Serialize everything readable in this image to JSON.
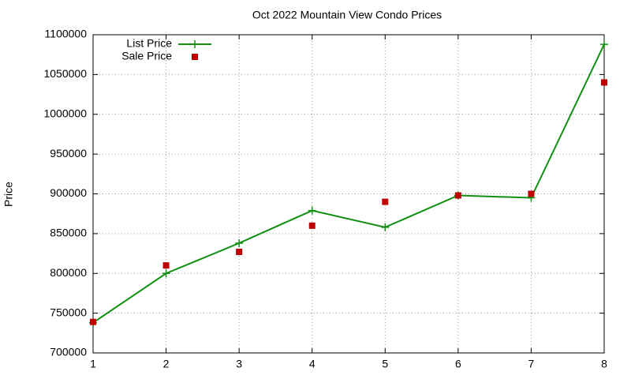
{
  "chart_data": {
    "type": "line",
    "title": "Oct 2022 Mountain View Condo Prices",
    "y_label": "Price",
    "x": [
      1,
      2,
      3,
      4,
      5,
      6,
      7,
      8
    ],
    "series": [
      {
        "name": "List Price",
        "color": "#109010",
        "style": "linespoints",
        "values": [
          738000,
          800000,
          838000,
          879000,
          858000,
          898000,
          895000,
          1088000
        ]
      },
      {
        "name": "Sale Price",
        "color": "#c00000",
        "style": "points",
        "values": [
          739000,
          810000,
          827000,
          860000,
          890000,
          898000,
          900000,
          1040000
        ]
      }
    ],
    "xlim": [
      1,
      8
    ],
    "xticks": [
      1,
      2,
      3,
      4,
      5,
      6,
      7,
      8
    ],
    "ylim": [
      700000,
      1100000
    ],
    "yticks": [
      700000,
      750000,
      800000,
      850000,
      900000,
      950000,
      1000000,
      1050000,
      1100000
    ],
    "grid": true,
    "legend": "top-left"
  }
}
